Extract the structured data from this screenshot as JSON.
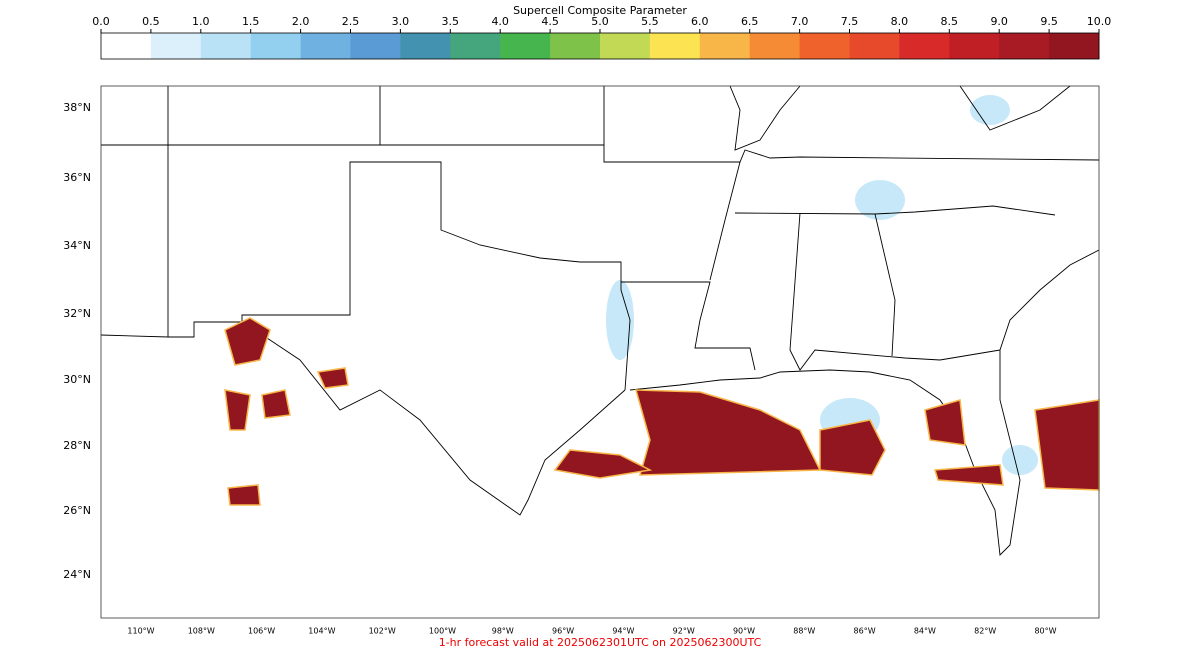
{
  "colorbar": {
    "title": "Supercell Composite Parameter",
    "ticks": [
      {
        "value": 0,
        "label": "0.0"
      },
      0.5,
      {
        "value": 1,
        "label": "1.0"
      },
      1.5,
      {
        "value": 2,
        "label": "2.0"
      },
      2.5,
      {
        "value": 3,
        "label": "3.0"
      },
      3.5,
      {
        "value": 4,
        "label": "4.0"
      },
      4.5,
      {
        "value": 5,
        "label": "5.0"
      },
      5.5,
      {
        "value": 6,
        "label": "6.0"
      },
      6.5,
      {
        "value": 7,
        "label": "7.0"
      },
      7.5,
      {
        "value": 8,
        "label": "8.0"
      },
      8.5,
      {
        "value": 9,
        "label": "9.0"
      },
      9.5,
      {
        "value": 10,
        "label": "10.0"
      }
    ],
    "colors": [
      "#ffffff",
      "#dcf0fb",
      "#b9e2f6",
      "#93cfef",
      "#6fb2e1",
      "#5a9bd5",
      "#4393b0",
      "#45a67e",
      "#46b54e",
      "#7ec24a",
      "#c2d956",
      "#fbe351",
      "#f8b548",
      "#f68b35",
      "#f0622b",
      "#e64a2a",
      "#d82a28",
      "#c01f26",
      "#a81b24",
      "#911620"
    ]
  },
  "map": {
    "lat_labels": [
      "38°N",
      "36°N",
      "34°N",
      "32°N",
      "30°N",
      "28°N",
      "26°N",
      "24°N"
    ],
    "lon_labels": [
      "110°W",
      "108°W",
      "106°W",
      "104°W",
      "102°W",
      "100°W",
      "98°W",
      "96°W",
      "94°W",
      "92°W",
      "90°W",
      "88°W",
      "86°W",
      "84°W",
      "82°W",
      "80°W"
    ]
  },
  "footer": "1-hr forecast valid at 2025062301UTC on 2025062300UTC"
}
